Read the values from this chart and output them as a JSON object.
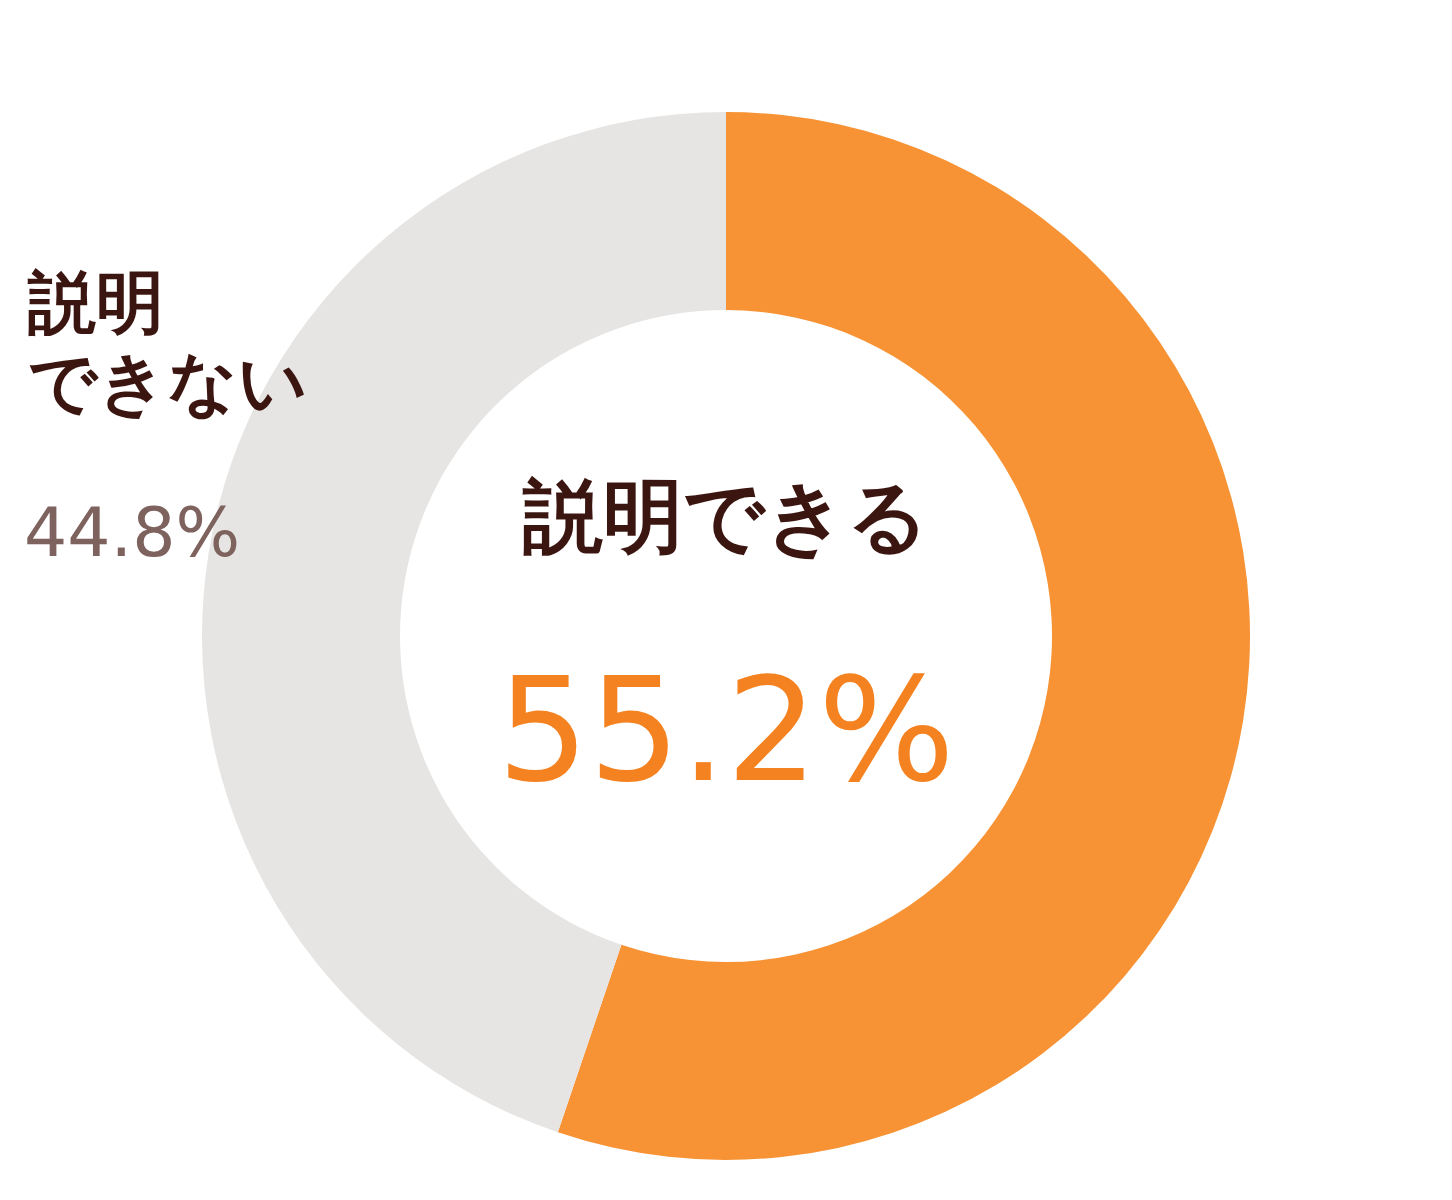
{
  "chart_data": {
    "type": "donut",
    "categories": [
      "説明できる",
      "説明できない"
    ],
    "values": [
      55.2,
      44.8
    ],
    "colors": [
      "#f79335",
      "#e7e5e4"
    ],
    "value_labels": [
      "55.2%",
      "44.8%"
    ]
  }
}
